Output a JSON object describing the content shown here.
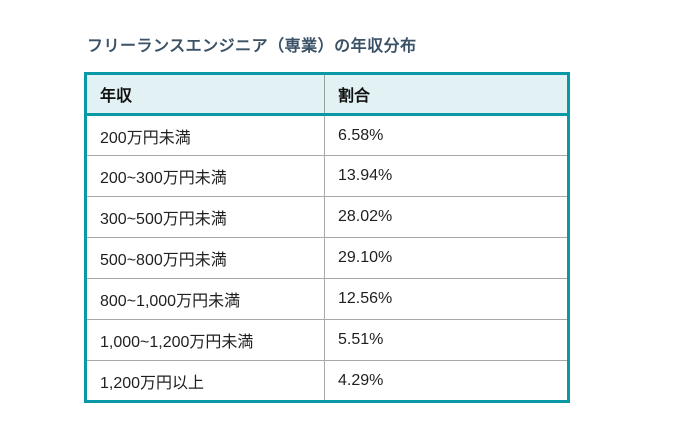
{
  "title": "フリーランスエンジニア（専業）の年収分布",
  "table": {
    "headers": [
      "年収",
      "割合"
    ],
    "rows": [
      [
        "200万円未満",
        "6.58%"
      ],
      [
        "200~300万円未満",
        "13.94%"
      ],
      [
        "300~500万円未満",
        "28.02%"
      ],
      [
        "500~800万円未満",
        "29.10%"
      ],
      [
        "800~1,000万円未満",
        "12.56%"
      ],
      [
        "1,000~1,200万円未満",
        "5.51%"
      ],
      [
        "1,200万円以上",
        "4.29%"
      ]
    ]
  },
  "chart_data": {
    "type": "table",
    "title": "フリーランスエンジニア（専業）の年収分布",
    "columns": [
      "年収",
      "割合"
    ],
    "categories": [
      "200万円未満",
      "200~300万円未満",
      "300~500万円未満",
      "500~800万円未満",
      "800~1,000万円未満",
      "1,000~1,200万円未満",
      "1,200万円以上"
    ],
    "values": [
      6.58,
      13.94,
      28.02,
      29.1,
      12.56,
      5.51,
      4.29
    ],
    "unit": "%"
  },
  "colors": {
    "accent_border": "#0898a6",
    "header_bg": "#e1f1f4",
    "title_color": "#3a5166",
    "cell_text": "#1f1f1f",
    "row_divider": "#a8a8a8"
  }
}
